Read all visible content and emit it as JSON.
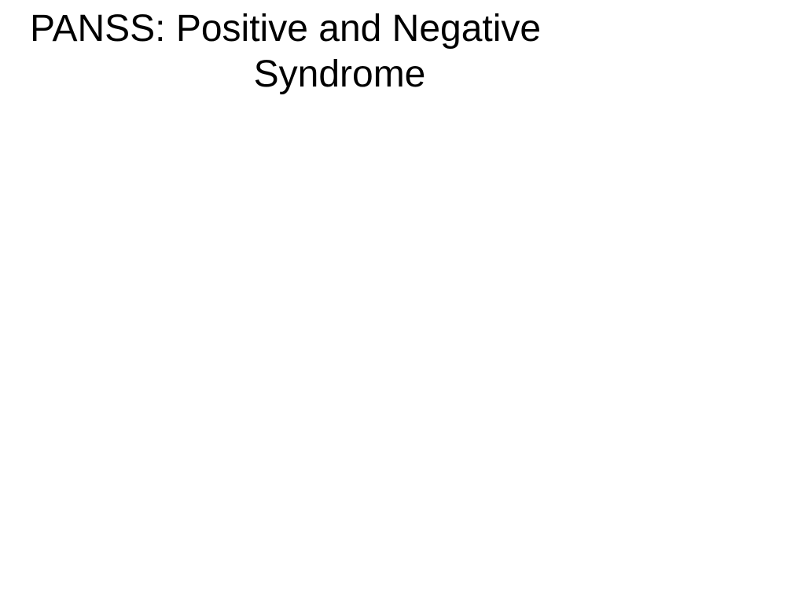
{
  "slide": {
    "title_line_1": "PANSS: Positive and Negative",
    "title_line_2": "Syndrome",
    "background_color": "#ffffff",
    "text_color": "#000000",
    "font_size_pt": 36,
    "font_family": "Arial"
  }
}
